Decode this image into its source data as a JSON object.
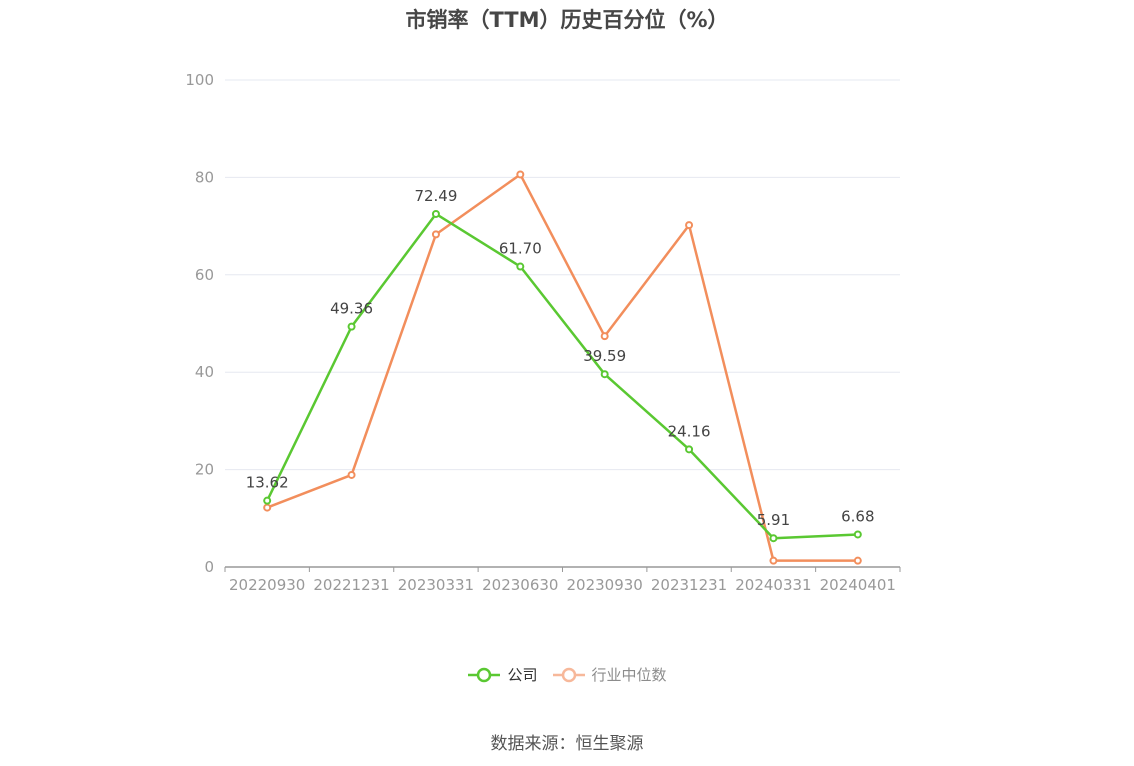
{
  "title": "市销率（TTM）历史百分位（%）",
  "source": "数据来源：恒生聚源",
  "colors": {
    "company": "#5ac832",
    "industry": "#f28e5c",
    "grid": "#e6e8f0",
    "axis": "#999999",
    "text": "#999999",
    "label": "#444444"
  },
  "chart_data": {
    "type": "line",
    "title": "市销率（TTM）历史百分位（%）",
    "xlabel": "",
    "ylabel": "",
    "categories": [
      "20220930",
      "20221231",
      "20230331",
      "20230630",
      "20230930",
      "20231231",
      "20240331",
      "20240401"
    ],
    "ylim": [
      0,
      100
    ],
    "yticks": [
      0,
      20,
      40,
      60,
      80,
      100
    ],
    "grid": true,
    "legend_position": "bottom",
    "series": [
      {
        "name": "公司",
        "color": "#5ac832",
        "values": [
          13.62,
          49.36,
          72.49,
          61.7,
          39.59,
          24.16,
          5.91,
          6.68
        ],
        "labels": [
          "13.62",
          "49.36",
          "72.49",
          "61.70",
          "39.59",
          "24.16",
          "5.91",
          "6.68"
        ]
      },
      {
        "name": "行业中位数",
        "color": "#f28e5c",
        "values": [
          12.2,
          18.9,
          68.3,
          80.6,
          47.4,
          70.2,
          1.3,
          1.3
        ]
      }
    ]
  }
}
